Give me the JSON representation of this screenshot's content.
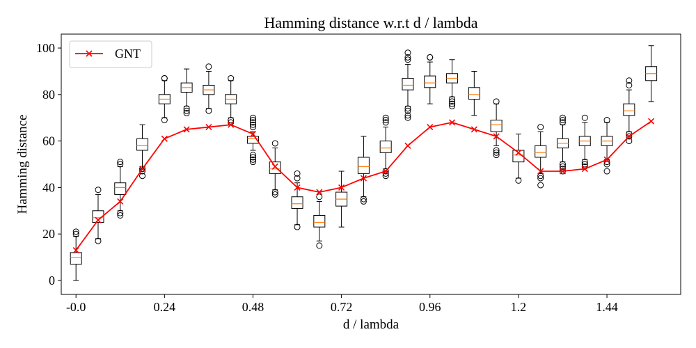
{
  "chart_data": {
    "type": "box",
    "title": "Hamming distance w.r.t d / lambda",
    "xlabel": "d / lambda",
    "ylabel": "Hamming distance",
    "xlim": [
      -0.04,
      1.64
    ],
    "ylim": [
      -6,
      106
    ],
    "x_ticks": [
      0.0,
      0.24,
      0.48,
      0.72,
      0.96,
      1.2,
      1.44
    ],
    "x_tick_labels": [
      "-0.0",
      "0.24",
      "0.48",
      "0.72",
      "0.96",
      "1.2",
      "1.44"
    ],
    "y_ticks": [
      0,
      20,
      40,
      60,
      80,
      100
    ],
    "y_tick_labels": [
      "0",
      "20",
      "40",
      "60",
      "80",
      "100"
    ],
    "grid": false,
    "legend": {
      "position": "top-left",
      "entries": [
        "GNT"
      ]
    },
    "colors": {
      "line": "#ff0000",
      "median": "#ff7f0e",
      "box": "#000000"
    },
    "x": [
      0.0,
      0.06,
      0.12,
      0.18,
      0.24,
      0.3,
      0.36,
      0.42,
      0.48,
      0.54,
      0.6,
      0.66,
      0.72,
      0.78,
      0.84,
      0.9,
      0.96,
      1.02,
      1.08,
      1.14,
      1.2,
      1.26,
      1.32,
      1.38,
      1.44,
      1.5,
      1.56
    ],
    "boxes": [
      {
        "whislo": 0,
        "q1": 7,
        "med": 10,
        "q3": 12,
        "whishi": 19,
        "fliers": [
          20,
          21
        ]
      },
      {
        "whislo": 18,
        "q1": 25,
        "med": 27,
        "q3": 30,
        "whishi": 37,
        "fliers": [
          17,
          39
        ]
      },
      {
        "whislo": 30,
        "q1": 37,
        "med": 40,
        "q3": 42,
        "whishi": 49,
        "fliers": [
          28,
          29,
          50,
          51
        ]
      },
      {
        "whislo": 48,
        "q1": 56,
        "med": 58,
        "q3": 61,
        "whishi": 67,
        "fliers": [
          45,
          47,
          48
        ]
      },
      {
        "whislo": 70,
        "q1": 76,
        "med": 78,
        "q3": 80,
        "whishi": 86,
        "fliers": [
          69,
          87,
          87
        ]
      },
      {
        "whislo": 75,
        "q1": 81,
        "med": 83,
        "q3": 85,
        "whishi": 91,
        "fliers": [
          72,
          73,
          74
        ]
      },
      {
        "whislo": 74,
        "q1": 80,
        "med": 82,
        "q3": 84,
        "whishi": 90,
        "fliers": [
          73,
          92
        ]
      },
      {
        "whislo": 70,
        "q1": 76,
        "med": 78,
        "q3": 80,
        "whishi": 86,
        "fliers": [
          68,
          69,
          87
        ]
      },
      {
        "whislo": 56,
        "q1": 59,
        "med": 61,
        "q3": 62,
        "whishi": 64,
        "fliers": [
          51,
          52,
          53,
          54,
          66,
          67,
          68,
          69,
          70
        ]
      },
      {
        "whislo": 39,
        "q1": 46,
        "med": 48,
        "q3": 51,
        "whishi": 57,
        "fliers": [
          37,
          38,
          59
        ]
      },
      {
        "whislo": 24,
        "q1": 31,
        "med": 33,
        "q3": 36,
        "whishi": 42,
        "fliers": [
          23,
          44,
          46
        ]
      },
      {
        "whislo": 17,
        "q1": 23,
        "med": 25,
        "q3": 28,
        "whishi": 34,
        "fliers": [
          15,
          36
        ]
      },
      {
        "whislo": 23,
        "q1": 32,
        "med": 35,
        "q3": 38,
        "whishi": 47,
        "fliers": []
      },
      {
        "whislo": 36,
        "q1": 46,
        "med": 49,
        "q3": 53,
        "whishi": 62,
        "fliers": [
          34,
          35
        ]
      },
      {
        "whislo": 48,
        "q1": 55,
        "med": 57,
        "q3": 60,
        "whishi": 66,
        "fliers": [
          45,
          46,
          47,
          68,
          69,
          70
        ]
      },
      {
        "whislo": 75,
        "q1": 82,
        "med": 84,
        "q3": 87,
        "whishi": 93,
        "fliers": [
          70,
          71,
          73,
          74,
          95,
          96,
          98
        ]
      },
      {
        "whislo": 76,
        "q1": 83,
        "med": 85,
        "q3": 88,
        "whishi": 94,
        "fliers": [
          96,
          96
        ]
      },
      {
        "whislo": 79,
        "q1": 85,
        "med": 87,
        "q3": 89,
        "whishi": 95,
        "fliers": [
          75,
          76,
          77,
          78
        ]
      },
      {
        "whislo": 71,
        "q1": 78,
        "med": 80,
        "q3": 83,
        "whishi": 90,
        "fliers": []
      },
      {
        "whislo": 58,
        "q1": 64,
        "med": 67,
        "q3": 69,
        "whishi": 76,
        "fliers": [
          54,
          55,
          56,
          77
        ]
      },
      {
        "whislo": 44,
        "q1": 51,
        "med": 54,
        "q3": 56,
        "whishi": 63,
        "fliers": [
          43
        ]
      },
      {
        "whislo": 46,
        "q1": 53,
        "med": 55,
        "q3": 58,
        "whishi": 64,
        "fliers": [
          41,
          44,
          45,
          66
        ]
      },
      {
        "whislo": 51,
        "q1": 57,
        "med": 59,
        "q3": 61,
        "whishi": 67,
        "fliers": [
          47,
          48,
          49,
          50,
          68,
          69,
          70
        ]
      },
      {
        "whislo": 52,
        "q1": 58,
        "med": 60,
        "q3": 62,
        "whishi": 68,
        "fliers": [
          49,
          50,
          51,
          70
        ]
      },
      {
        "whislo": 52,
        "q1": 58,
        "med": 60,
        "q3": 62,
        "whishi": 68,
        "fliers": [
          47,
          50,
          51,
          69
        ]
      },
      {
        "whislo": 64,
        "q1": 71,
        "med": 73,
        "q3": 76,
        "whishi": 82,
        "fliers": [
          60,
          62,
          63,
          84,
          86
        ]
      },
      {
        "whislo": 77,
        "q1": 86,
        "med": 89,
        "q3": 92,
        "whishi": 101,
        "fliers": []
      }
    ],
    "series": [
      {
        "name": "GNT",
        "type": "line",
        "marker": "x",
        "x": [
          0.0,
          0.06,
          0.12,
          0.18,
          0.24,
          0.3,
          0.36,
          0.42,
          0.48,
          0.54,
          0.6,
          0.66,
          0.72,
          0.78,
          0.84,
          0.9,
          0.96,
          1.02,
          1.08,
          1.14,
          1.2,
          1.26,
          1.32,
          1.38,
          1.44,
          1.5,
          1.56
        ],
        "values": [
          13,
          26,
          34,
          48,
          61,
          65,
          66,
          67,
          63,
          49,
          40,
          38,
          40,
          44,
          47,
          58,
          66,
          68,
          65,
          62,
          55,
          47,
          47,
          48,
          52,
          62,
          68.5
        ]
      }
    ]
  }
}
